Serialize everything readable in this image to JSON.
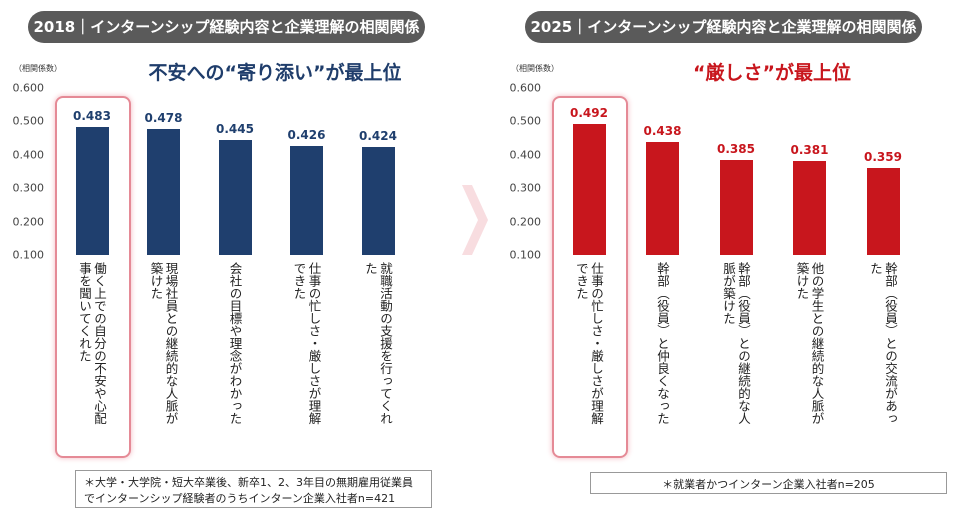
{
  "chart_data": [
    {
      "type": "bar",
      "title": "2018｜インターンシップ経験内容と企業理解の相関関係",
      "subtitle": "不安への“寄り添い”が最上位",
      "y_label": "（相関係数）",
      "categories": [
        "働く上での自分の不安や心配事を聞いてくれた",
        "現場社員との継続的な人脈が築けた",
        "会社の目標や理念がわかった",
        "仕事の忙しさ・厳しさが理解できた",
        "就職活動の支援を行ってくれた"
      ],
      "values": [
        0.483,
        0.478,
        0.445,
        0.426,
        0.424
      ],
      "color": "#1f3f6e",
      "ylim": [
        0.1,
        0.6
      ],
      "yticks": [
        {
          "value": 0.1,
          "label": "0.100"
        },
        {
          "value": 0.2,
          "label": "0.200"
        },
        {
          "value": 0.3,
          "label": "0.300"
        },
        {
          "value": 0.4,
          "label": "0.400"
        },
        {
          "value": 0.5,
          "label": "0.500"
        },
        {
          "value": 0.6,
          "label": "0.600"
        }
      ],
      "note": "＊大学・大学院・短大卒業後、新卒1、2、3年目の無期雇用従業員でインターンシップ経験者のうちインターン企業入社者n=421"
    },
    {
      "type": "bar",
      "title": "2025｜インターンシップ経験内容と企業理解の相関関係",
      "subtitle": "“厳しさ”が最上位",
      "y_label": "（相関係数）",
      "categories": [
        "仕事の忙しさ・厳しさが理解できた",
        "幹部（役員）と仲良くなった",
        "幹部（役員）との継続的な人脈が築けた",
        "他の学生との継続的な人脈が築けた",
        "幹部（役員）との交流があった"
      ],
      "values": [
        0.492,
        0.438,
        0.385,
        0.381,
        0.359
      ],
      "color": "#c8161d",
      "ylim": [
        0.1,
        0.6
      ],
      "yticks": [
        {
          "value": 0.1,
          "label": "0.100"
        },
        {
          "value": 0.2,
          "label": "0.200"
        },
        {
          "value": 0.3,
          "label": "0.300"
        },
        {
          "value": 0.4,
          "label": "0.400"
        },
        {
          "value": 0.5,
          "label": "0.500"
        },
        {
          "value": 0.6,
          "label": "0.600"
        }
      ],
      "note": "＊就業者かつインターン企業入社者n=205"
    }
  ]
}
